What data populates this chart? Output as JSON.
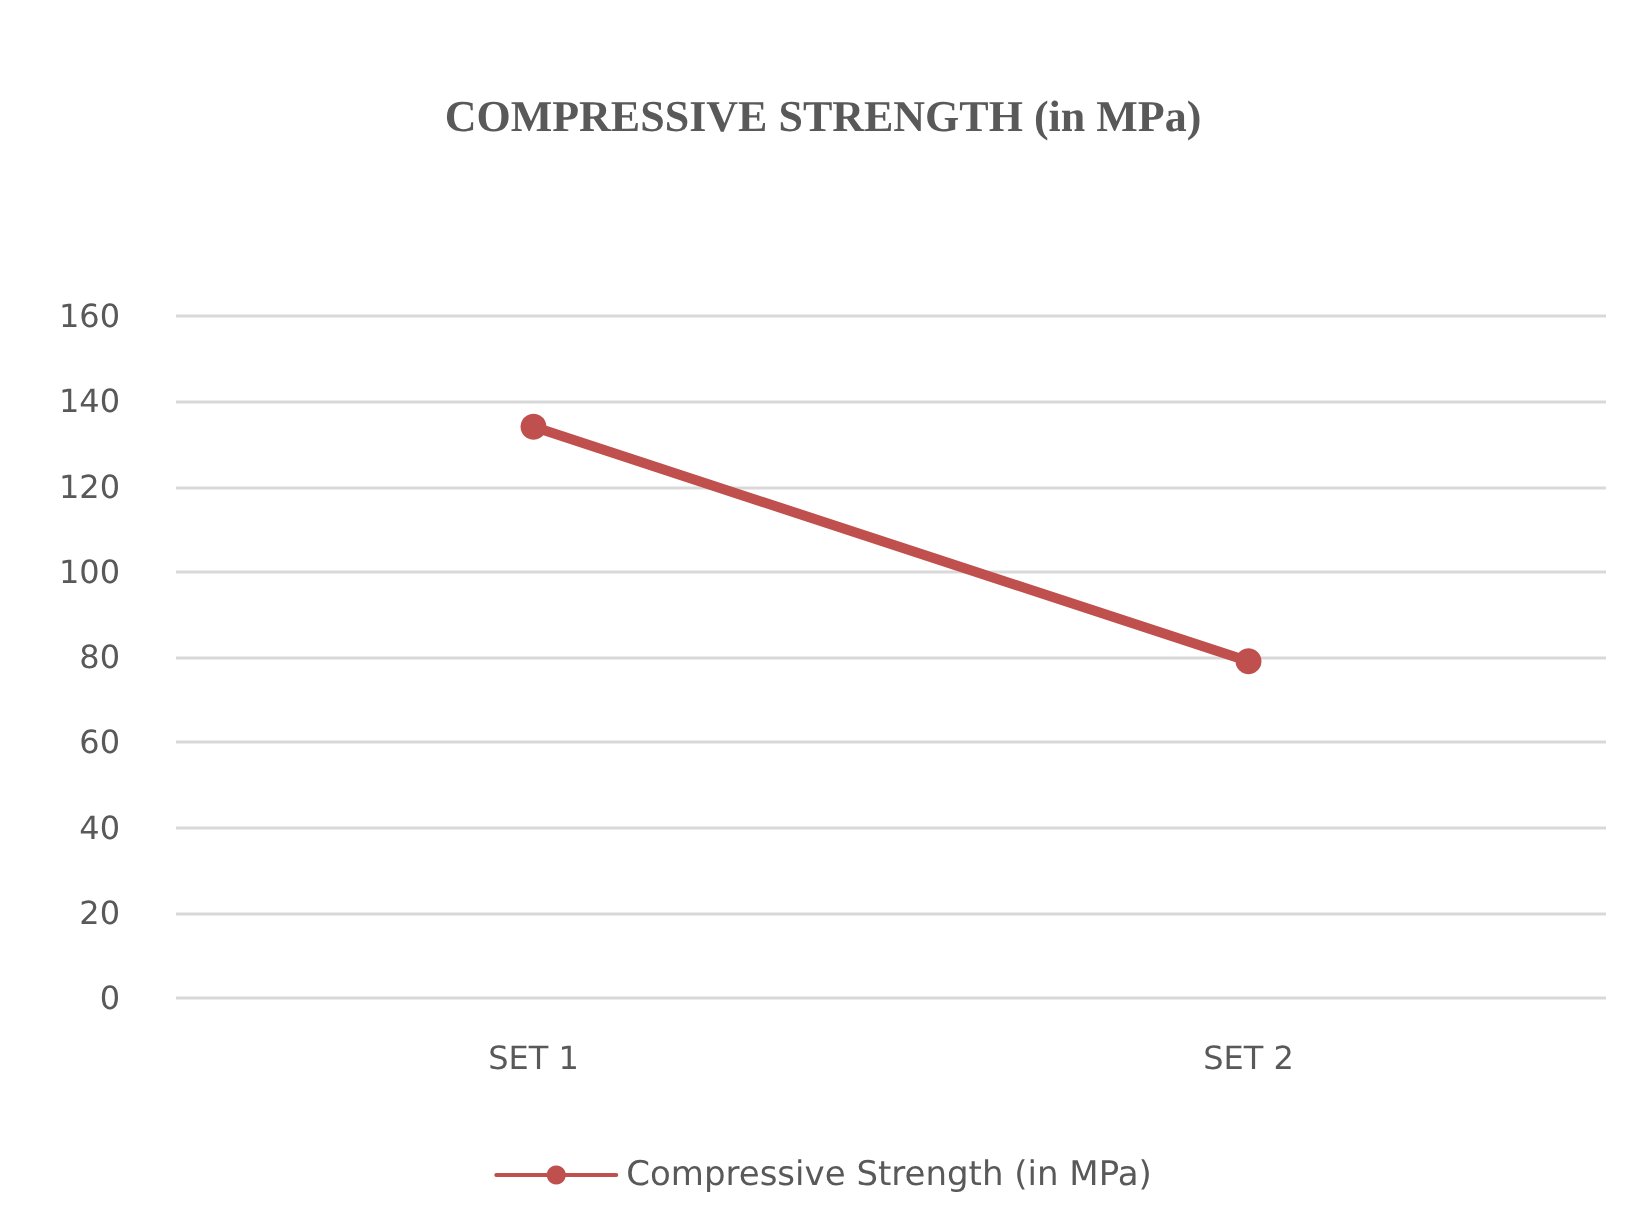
{
  "chart_data": {
    "type": "line",
    "title": "COMPRESSIVE STRENGTH (in MPa)",
    "categories": [
      "SET 1",
      "SET 2"
    ],
    "series": [
      {
        "name": "Compressive Strength (in MPa)",
        "color": "#c0504d",
        "values": [
          134,
          79
        ]
      }
    ],
    "ylim": [
      0,
      160
    ],
    "yticks": [
      0,
      20,
      40,
      60,
      80,
      100,
      120,
      140,
      160
    ],
    "grid": "y",
    "legend": "bottom",
    "marker": "circle",
    "line_style": "solid"
  }
}
